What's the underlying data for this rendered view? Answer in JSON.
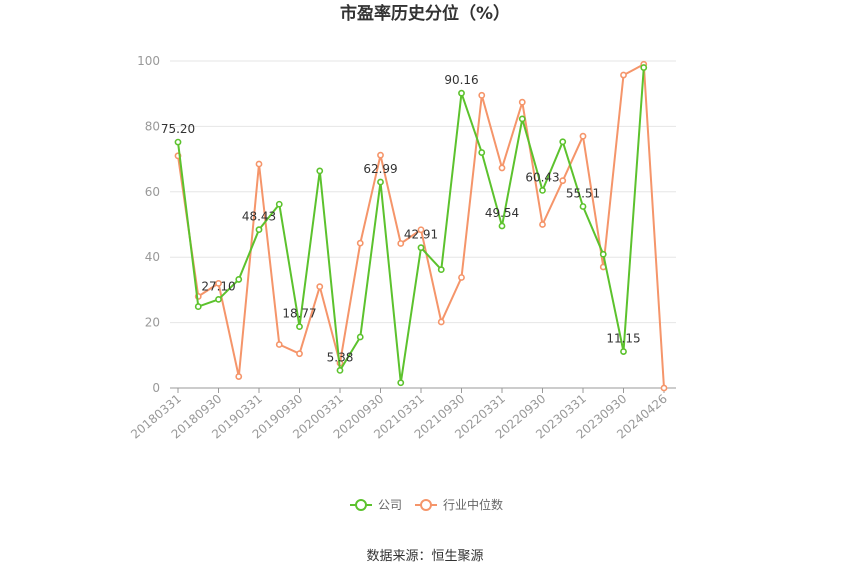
{
  "chart_data": {
    "type": "line",
    "title": "市盈率历史分位（%）",
    "source": "数据来源：恒生聚源",
    "ylim": [
      0,
      100
    ],
    "yticks": [
      0,
      20,
      40,
      60,
      80,
      100
    ],
    "grid": true,
    "legend_position": "bottom",
    "x_tick_labels": [
      "20180331",
      "20180930",
      "20190331",
      "20190930",
      "20200331",
      "20200930",
      "20210331",
      "20210930",
      "20220331",
      "20220930",
      "20230331",
      "20230930",
      "20240426"
    ],
    "x_tick_index": [
      0,
      2,
      4,
      6,
      8,
      10,
      12,
      14,
      16,
      18,
      20,
      22,
      24
    ],
    "series": [
      {
        "name": "公司",
        "color": "#5cc22d",
        "values": [
          75.2,
          24.9,
          27.1,
          33.2,
          48.43,
          56.2,
          18.77,
          66.4,
          5.38,
          15.6,
          62.99,
          1.6,
          42.91,
          36.2,
          90.16,
          72.0,
          49.54,
          82.3,
          60.43,
          75.3,
          55.51,
          40.9,
          11.15,
          98.0,
          null
        ]
      },
      {
        "name": "行业中位数",
        "color": "#f5956a",
        "values": [
          71.0,
          28.0,
          32.0,
          3.5,
          68.5,
          13.3,
          10.5,
          31.0,
          7.6,
          44.3,
          71.2,
          44.2,
          48.4,
          20.2,
          33.8,
          89.5,
          67.3,
          87.4,
          50.0,
          63.4,
          77.0,
          37.0,
          95.7,
          99.0,
          0.0
        ]
      }
    ],
    "data_labels": [
      {
        "series": 0,
        "index": 0,
        "text": "75.20"
      },
      {
        "series": 0,
        "index": 2,
        "text": "27.10"
      },
      {
        "series": 0,
        "index": 4,
        "text": "48.43"
      },
      {
        "series": 0,
        "index": 6,
        "text": "18.77"
      },
      {
        "series": 0,
        "index": 8,
        "text": "5.38"
      },
      {
        "series": 0,
        "index": 10,
        "text": "62.99"
      },
      {
        "series": 0,
        "index": 12,
        "text": "42.91"
      },
      {
        "series": 0,
        "index": 14,
        "text": "90.16"
      },
      {
        "series": 0,
        "index": 16,
        "text": "49.54"
      },
      {
        "series": 0,
        "index": 18,
        "text": "60.43"
      },
      {
        "series": 0,
        "index": 20,
        "text": "55.51"
      },
      {
        "series": 0,
        "index": 22,
        "text": "11.15"
      }
    ]
  }
}
